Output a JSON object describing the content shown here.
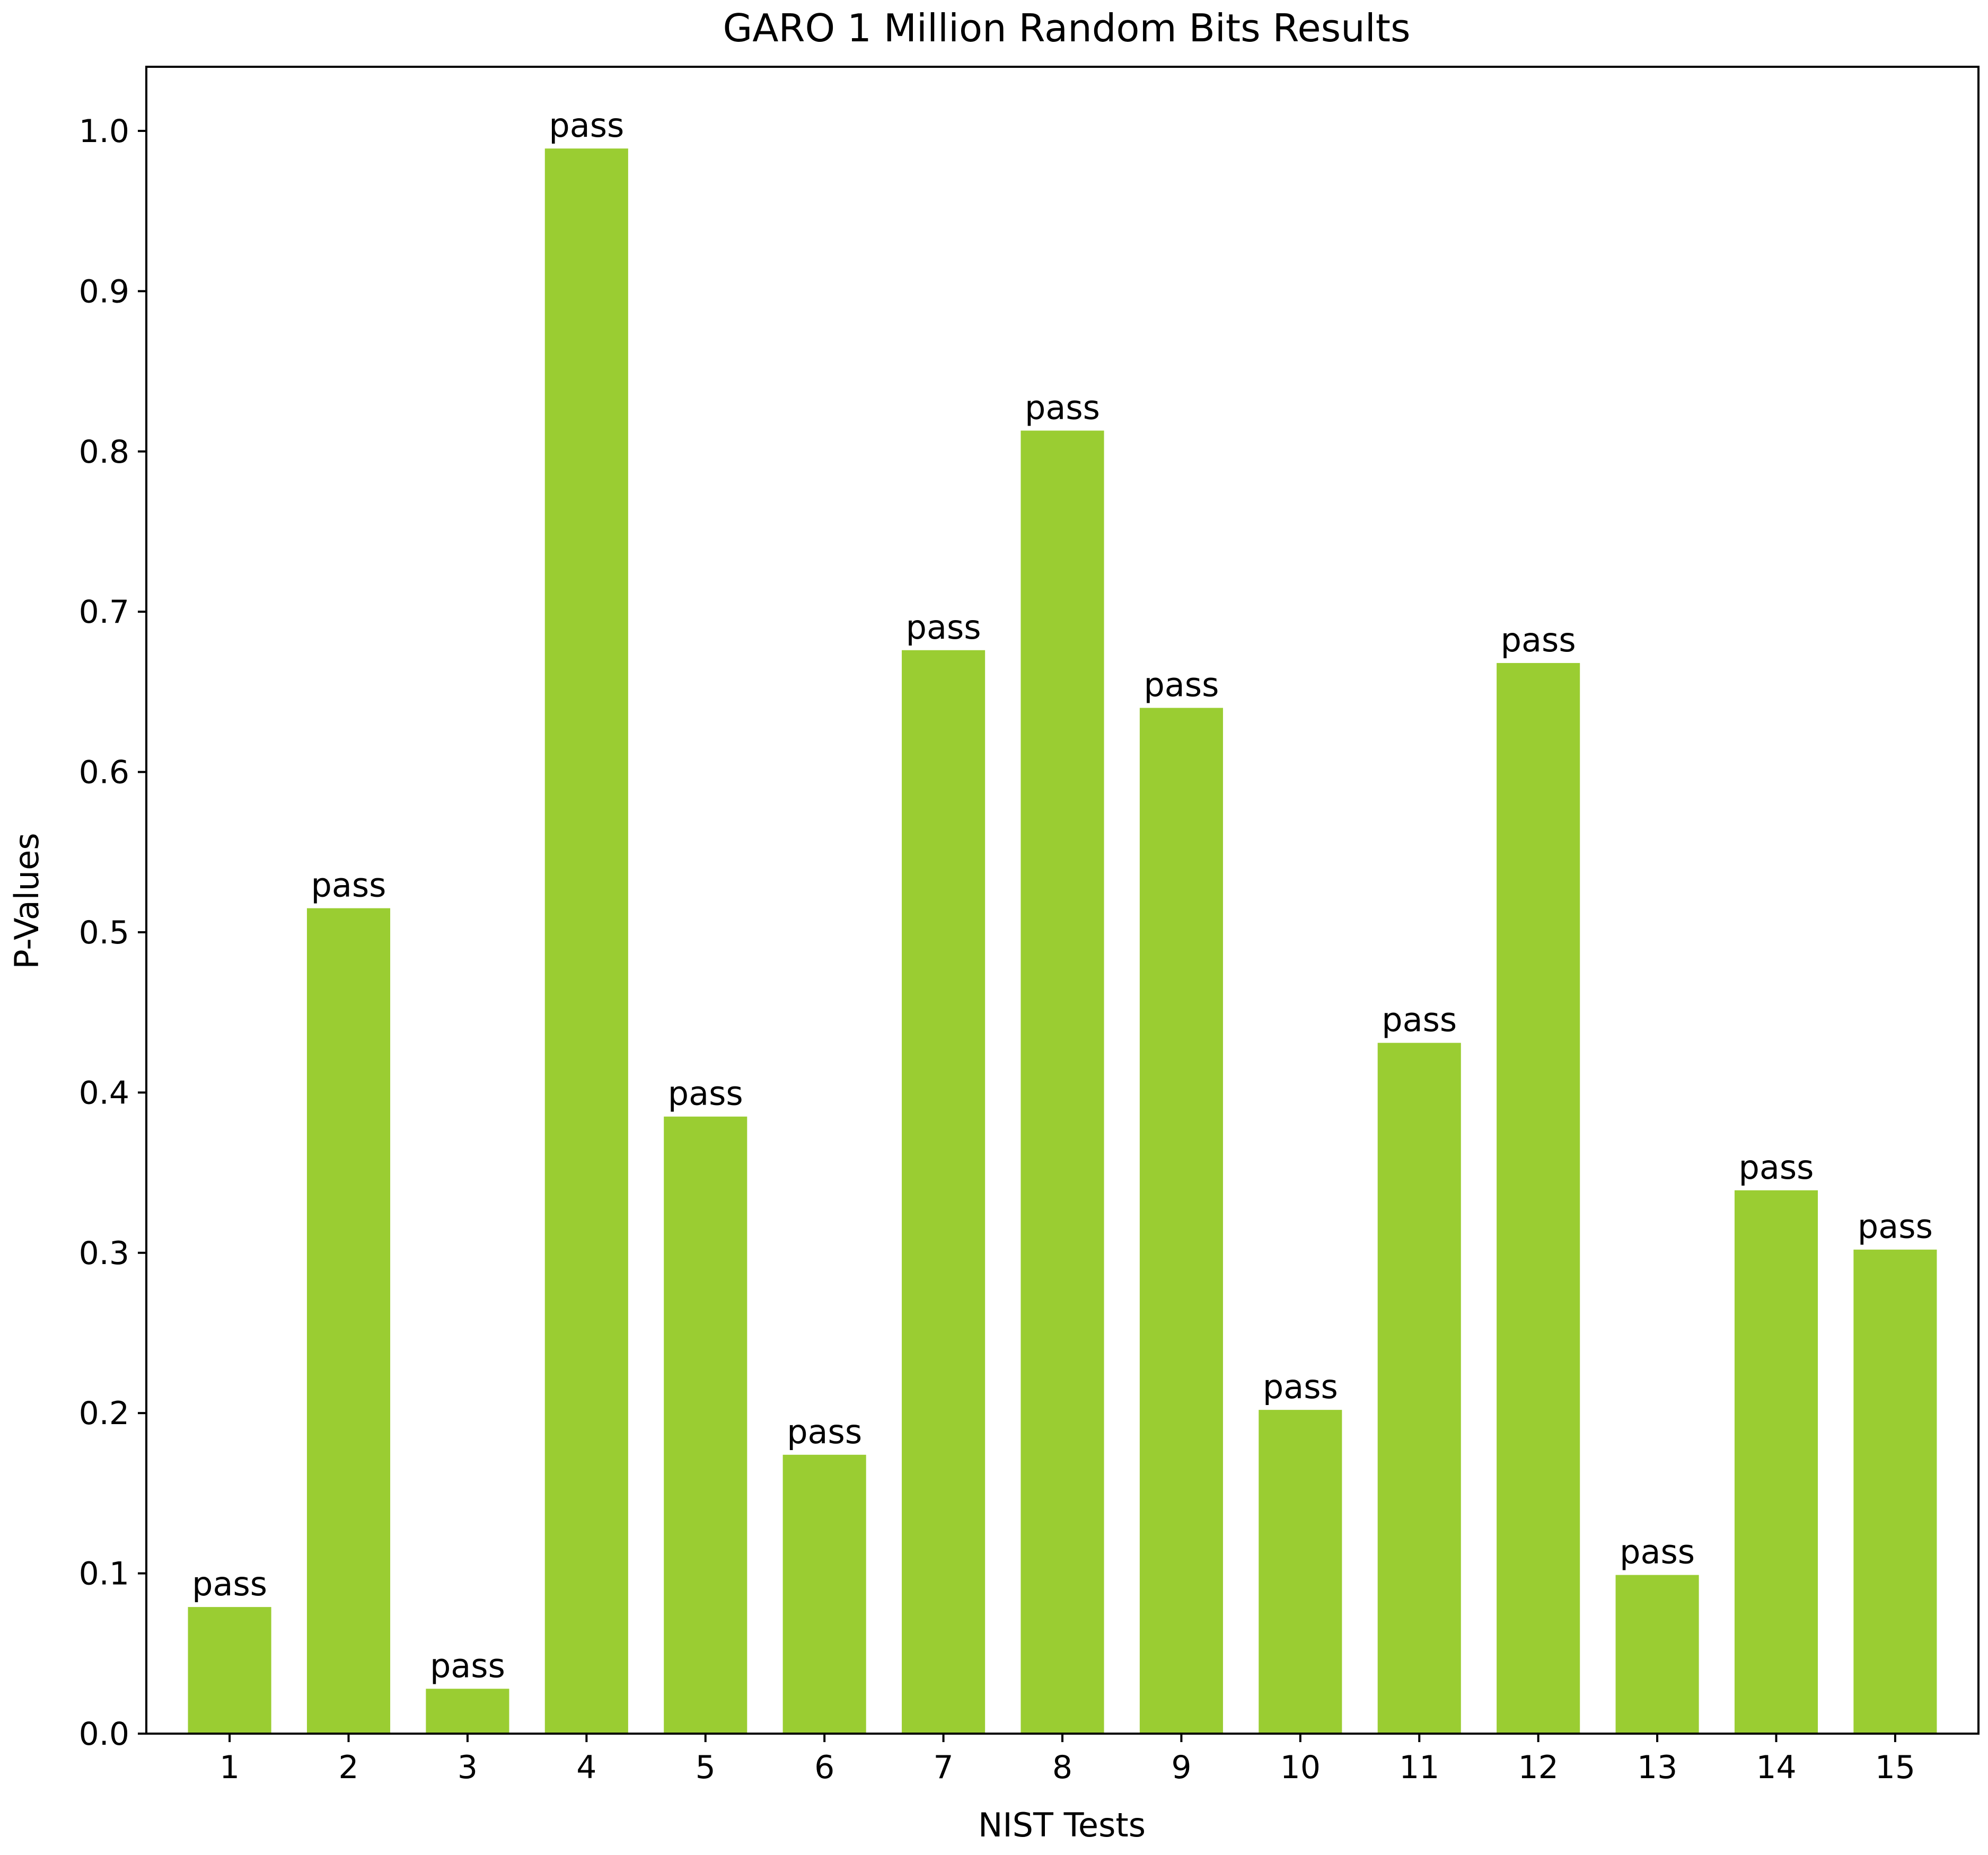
{
  "chart_data": {
    "type": "bar",
    "title": "GARO 1 Million Random Bits Results",
    "xlabel": "NIST Tests",
    "ylabel": "P-Values",
    "categories": [
      "1",
      "2",
      "3",
      "4",
      "5",
      "6",
      "7",
      "8",
      "9",
      "10",
      "11",
      "12",
      "13",
      "14",
      "15"
    ],
    "values": [
      0.079,
      0.515,
      0.028,
      0.989,
      0.385,
      0.174,
      0.676,
      0.813,
      0.64,
      0.202,
      0.431,
      0.668,
      0.099,
      0.339,
      0.302
    ],
    "bar_labels": [
      "pass",
      "pass",
      "pass",
      "pass",
      "pass",
      "pass",
      "pass",
      "pass",
      "pass",
      "pass",
      "pass",
      "pass",
      "pass",
      "pass",
      "pass"
    ],
    "ylim": [
      0,
      1.04
    ],
    "yticks": [
      "0.0",
      "0.1",
      "0.2",
      "0.3",
      "0.4",
      "0.5",
      "0.6",
      "0.7",
      "0.8",
      "0.9",
      "1.0"
    ],
    "ytick_values": [
      0.0,
      0.1,
      0.2,
      0.3,
      0.4,
      0.5,
      0.6,
      0.7,
      0.8,
      0.9,
      1.0
    ],
    "grid": false,
    "bar_color": "#9acd32"
  }
}
